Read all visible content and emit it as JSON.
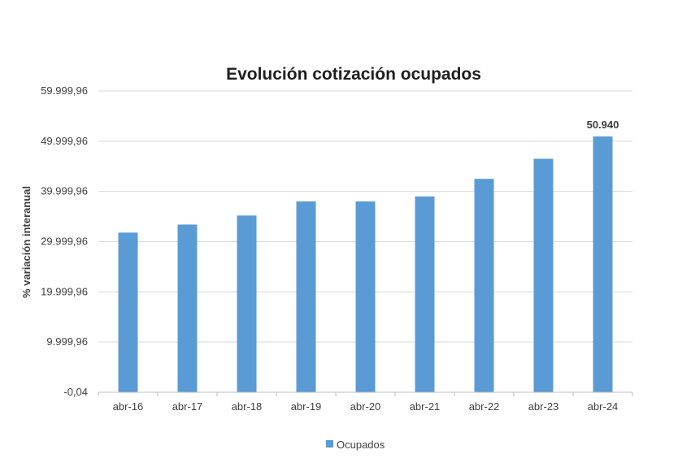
{
  "chart_data": {
    "type": "bar",
    "title": "Evolución cotización ocupados",
    "ylabel": "% variación interanual",
    "xlabel": "",
    "categories": [
      "abr-16",
      "abr-17",
      "abr-18",
      "abr-19",
      "abr-20",
      "abr-21",
      "abr-22",
      "abr-23",
      "abr-24"
    ],
    "series": [
      {
        "name": "Ocupados",
        "color": "#5b9bd5",
        "values": [
          31800,
          33400,
          35200,
          38000,
          38000,
          39000,
          42500,
          46500,
          50940
        ]
      }
    ],
    "ylim": [
      -0.04,
      59999.96
    ],
    "yticks": [
      -0.04,
      9999.96,
      19999.96,
      29999.96,
      39999.96,
      49999.96,
      59999.96
    ],
    "ytick_labels": [
      "-0,04",
      "9.999,96",
      "19.999,96",
      "29.999,96",
      "39.999,96",
      "49.999,96",
      "59.999,96"
    ],
    "data_labels": [
      null,
      null,
      null,
      null,
      null,
      null,
      null,
      null,
      "50.940"
    ],
    "grid": true,
    "legend_position": "bottom"
  }
}
